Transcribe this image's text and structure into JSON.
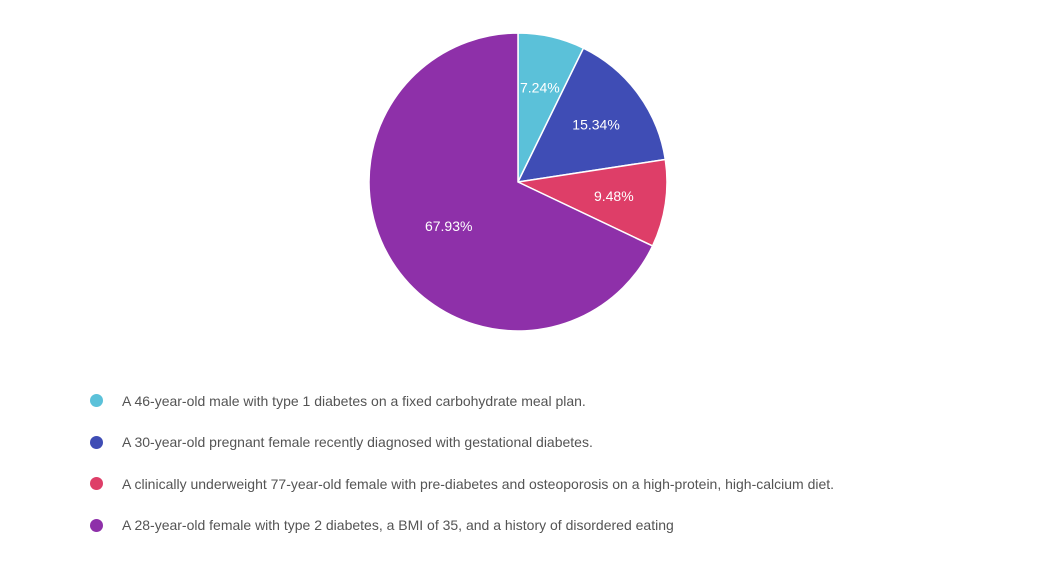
{
  "chart_data": {
    "type": "pie",
    "title": "",
    "start_angle_deg": 0,
    "direction": "clockwise",
    "legend_position": "bottom",
    "slices": [
      {
        "label": "A 46-year-old male with type 1 diabetes on a fixed carbohydrate meal plan.",
        "value": 7.24,
        "value_label": "7.24%",
        "color": "#5BC1D9"
      },
      {
        "label": "A 30-year-old pregnant female recently diagnosed with gestational diabetes.",
        "value": 15.34,
        "value_label": "15.34%",
        "color": "#3F4DB5"
      },
      {
        "label": "A clinically underweight 77-year-old female with pre-diabetes and osteoporosis on a high-protein, high-calcium diet.",
        "value": 9.48,
        "value_label": "9.48%",
        "color": "#DE3E68"
      },
      {
        "label": "A 28-year-old female with type 2 diabetes, a BMI of 35, and a history of disordered eating",
        "value": 67.93,
        "value_label": "67.93%",
        "color": "#8E30A9"
      }
    ]
  }
}
